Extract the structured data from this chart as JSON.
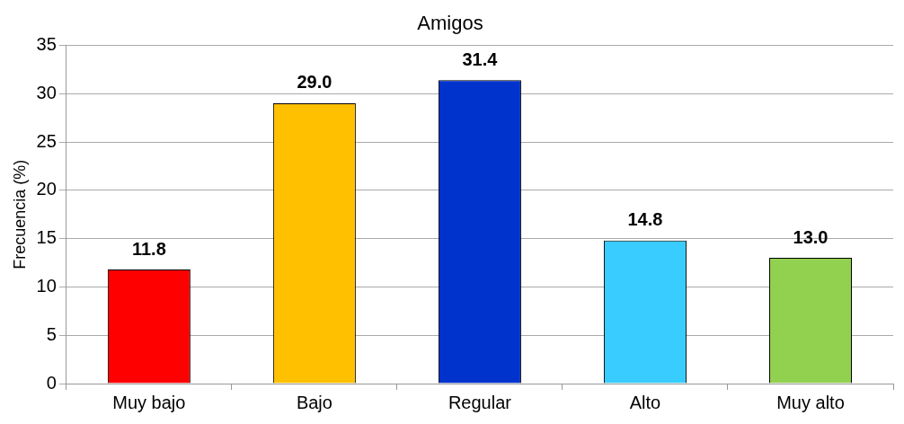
{
  "chart_data": {
    "type": "bar",
    "title": "Amigos",
    "ylabel": "Frecuencia (%)",
    "categories": [
      "Muy bajo",
      "Bajo",
      "Regular",
      "Alto",
      "Muy alto"
    ],
    "values": [
      11.8,
      29.0,
      31.4,
      14.8,
      13.0
    ],
    "colors": [
      "#ff0000",
      "#ffc000",
      "#0033cc",
      "#38ccff",
      "#92d050"
    ],
    "value_labels": [
      "11.8",
      "29.0",
      "31.4",
      "14.8",
      "13.0"
    ],
    "ylim": [
      0,
      35
    ],
    "yticks": [
      0,
      5,
      10,
      15,
      20,
      25,
      30,
      35
    ],
    "grid": "y",
    "legend": false
  }
}
